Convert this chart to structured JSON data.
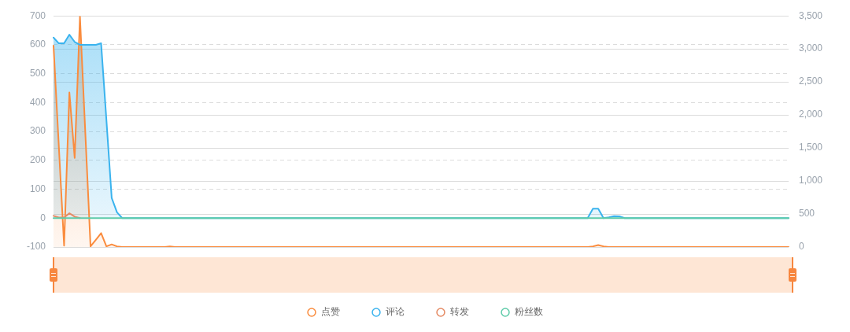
{
  "chart_data": {
    "type": "line",
    "categories": [
      null,
      null,
      null,
      null,
      null,
      null,
      null,
      null,
      null,
      null,
      null,
      null,
      null,
      null,
      null,
      null,
      null,
      null,
      null,
      null,
      null,
      null,
      null,
      null,
      null,
      null,
      null,
      null,
      null,
      null,
      null,
      null,
      null,
      null,
      null,
      null,
      null,
      null,
      null,
      null,
      null,
      null,
      null,
      null,
      null,
      null,
      null,
      null,
      null,
      null,
      null,
      null,
      null,
      null,
      null,
      null,
      null,
      null,
      null,
      null,
      null,
      null,
      null,
      null,
      null,
      null,
      null,
      null,
      null,
      null,
      null,
      null,
      null,
      null,
      null,
      null,
      null,
      null,
      null,
      null,
      null,
      null,
      null,
      null,
      null,
      null,
      null,
      null,
      null,
      null,
      null,
      null,
      null,
      null,
      null,
      null,
      null,
      null,
      null,
      null,
      null,
      null,
      null,
      null,
      null,
      null,
      null,
      null,
      null,
      null,
      null,
      null,
      null,
      null,
      null,
      null,
      null,
      null,
      null,
      null,
      null,
      null,
      null,
      null,
      null,
      null,
      null,
      null,
      null,
      null,
      null,
      null,
      null,
      null,
      null,
      null,
      null,
      null,
      null,
      null
    ],
    "series": [
      {
        "name": "点赞",
        "type": "area",
        "axis": "y2",
        "color": "#fa8c3e",
        "values": [
          3050,
          1530,
          20,
          2340,
          1350,
          3490,
          1750,
          10,
          110,
          210,
          10,
          40,
          10,
          0,
          0,
          0,
          0,
          0,
          0,
          0,
          0,
          0,
          10,
          0,
          0,
          0,
          0,
          0,
          0,
          0,
          0,
          0,
          0,
          0,
          0,
          0,
          0,
          0,
          0,
          0,
          0,
          0,
          0,
          0,
          0,
          0,
          0,
          0,
          0,
          0,
          0,
          0,
          0,
          0,
          0,
          0,
          0,
          0,
          0,
          0,
          0,
          0,
          0,
          0,
          0,
          0,
          0,
          0,
          0,
          0,
          0,
          0,
          0,
          0,
          0,
          0,
          0,
          0,
          0,
          0,
          0,
          0,
          0,
          0,
          0,
          0,
          0,
          0,
          0,
          0,
          0,
          0,
          0,
          0,
          0,
          0,
          0,
          0,
          0,
          0,
          0,
          0,
          10,
          30,
          10,
          0,
          0,
          0,
          0,
          0,
          0,
          0,
          0,
          0,
          0,
          0,
          0,
          0,
          0,
          0,
          0,
          0,
          0,
          0,
          0,
          0,
          0,
          0,
          0,
          0,
          0,
          0,
          0,
          0,
          0,
          0,
          0,
          0,
          0,
          0
        ]
      },
      {
        "name": "评论",
        "type": "area",
        "color": "#3ab3ee",
        "values": [
          625,
          605,
          605,
          635,
          610,
          600,
          600,
          600,
          600,
          605,
          340,
          70,
          20,
          0,
          0,
          0,
          0,
          0,
          0,
          0,
          0,
          0,
          0,
          0,
          0,
          0,
          0,
          0,
          0,
          0,
          0,
          0,
          0,
          0,
          0,
          0,
          0,
          0,
          0,
          0,
          0,
          0,
          0,
          0,
          0,
          0,
          0,
          0,
          0,
          0,
          0,
          0,
          0,
          0,
          0,
          0,
          0,
          0,
          0,
          0,
          0,
          0,
          0,
          0,
          0,
          0,
          0,
          0,
          0,
          0,
          0,
          0,
          0,
          0,
          0,
          0,
          0,
          0,
          0,
          0,
          0,
          0,
          0,
          0,
          0,
          0,
          0,
          0,
          0,
          0,
          0,
          0,
          0,
          0,
          0,
          0,
          0,
          0,
          0,
          0,
          0,
          0,
          33,
          33,
          0,
          3,
          7,
          6,
          0,
          0,
          0,
          0,
          0,
          0,
          0,
          0,
          0,
          0,
          0,
          0,
          0,
          0,
          0,
          0,
          0,
          0,
          0,
          0,
          0,
          0,
          0,
          0,
          0,
          0,
          0,
          0,
          0,
          0,
          0,
          0
        ]
      },
      {
        "name": "转发",
        "color": "#e58a63",
        "values": [
          8,
          2,
          2,
          17,
          5,
          0,
          null,
          null,
          null,
          null,
          null,
          null,
          null,
          null,
          null,
          null,
          null,
          null,
          null,
          null,
          null,
          null,
          null,
          null,
          null,
          null,
          null,
          null,
          null,
          null,
          null,
          null,
          null,
          null,
          null,
          null,
          null,
          null,
          null,
          null,
          null,
          null,
          null,
          null,
          null,
          null,
          null,
          null,
          null,
          null,
          null,
          null,
          null,
          null,
          null,
          null,
          null,
          null,
          null,
          null,
          null,
          null,
          null,
          null,
          null,
          null,
          null,
          null,
          null,
          null,
          null,
          null,
          null,
          null,
          null,
          null,
          null,
          null,
          null,
          null,
          null,
          null,
          null,
          null,
          null,
          null,
          null,
          null,
          null,
          null,
          null,
          null,
          null,
          null,
          null,
          null,
          null,
          null,
          null,
          null,
          null,
          null,
          null,
          null,
          null,
          null,
          null,
          null,
          null,
          null,
          null,
          null,
          null,
          null,
          null,
          null,
          null,
          null,
          null,
          null,
          null,
          null,
          null,
          null,
          null,
          null,
          null,
          null,
          null,
          null,
          null,
          null,
          null,
          null,
          null,
          null,
          null,
          null,
          null,
          null
        ]
      },
      {
        "name": "粉丝数",
        "color": "#5ecba9",
        "values": [
          0,
          0,
          0,
          0,
          0,
          0,
          0,
          0,
          0,
          0,
          0,
          0,
          0,
          0,
          0,
          0,
          0,
          0,
          0,
          0,
          0,
          0,
          0,
          0,
          0,
          0,
          0,
          0,
          0,
          0,
          0,
          0,
          0,
          0,
          0,
          0,
          0,
          0,
          0,
          0,
          0,
          0,
          0,
          0,
          0,
          0,
          0,
          0,
          0,
          0,
          0,
          0,
          0,
          0,
          0,
          0,
          0,
          0,
          0,
          0,
          0,
          0,
          0,
          0,
          0,
          0,
          0,
          0,
          0,
          0,
          0,
          0,
          0,
          0,
          0,
          0,
          0,
          0,
          0,
          0,
          0,
          0,
          0,
          0,
          0,
          0,
          0,
          0,
          0,
          0,
          0,
          0,
          0,
          0,
          0,
          0,
          0,
          0,
          0,
          0,
          0,
          0,
          0,
          0,
          0,
          0,
          0,
          0,
          0,
          0,
          0,
          0,
          0,
          0,
          0,
          0,
          0,
          0,
          0,
          0,
          0,
          0,
          0,
          0,
          0,
          0,
          0,
          0,
          0,
          0,
          0,
          0,
          0,
          0,
          0,
          0,
          0,
          0,
          0,
          0
        ]
      }
    ],
    "ylim": [
      -100,
      700
    ],
    "yticks": [
      -100,
      0,
      100,
      200,
      300,
      400,
      500,
      600,
      700
    ],
    "y2lim": [
      0,
      3500
    ],
    "y2ticks": [
      0,
      500,
      {
        "value": 1000,
        "label": "1,000"
      },
      {
        "value": 1500,
        "label": "1,500"
      },
      {
        "value": 2000,
        "label": "2,000"
      },
      {
        "value": 2500,
        "label": "2,500"
      },
      {
        "value": 3000,
        "label": "3,000"
      },
      {
        "value": 3500,
        "label": "3,500"
      }
    ],
    "grid": "y",
    "legend": "bottom"
  }
}
